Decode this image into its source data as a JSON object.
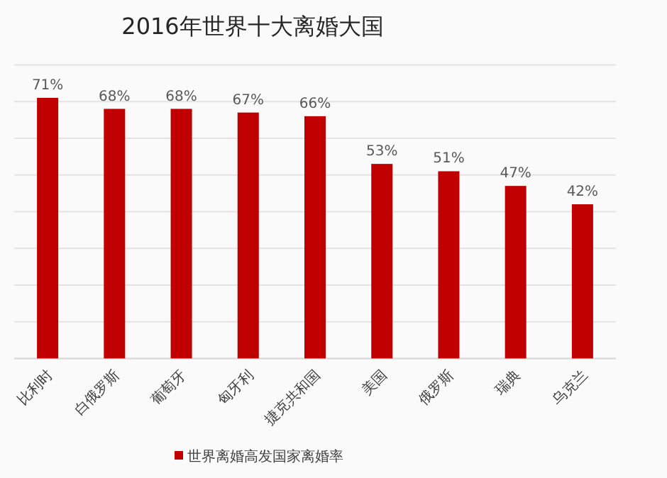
{
  "chart_data": {
    "type": "bar",
    "title": "2016年世界十大离婚大国",
    "categories": [
      "比利时",
      "白俄罗斯",
      "葡萄牙",
      "匈牙利",
      "捷克共和国",
      "美国",
      "俄罗斯",
      "瑞典",
      "乌克兰"
    ],
    "series": [
      {
        "name": "世界离婚高发国家离婚率",
        "color": "#c00000",
        "values": [
          71,
          68,
          68,
          67,
          66,
          53,
          51,
          47,
          42
        ],
        "value_labels": [
          "71%",
          "68%",
          "68%",
          "67%",
          "66%",
          "53%",
          "51%",
          "47%",
          "42%"
        ]
      }
    ],
    "ylim": [
      0,
      80
    ],
    "yticks": [
      {
        "value": 0,
        "label": null
      },
      {
        "value": 10,
        "label": null
      },
      {
        "value": 20,
        "label": null
      },
      {
        "value": 30,
        "label": null
      },
      {
        "value": 40,
        "label": null
      },
      {
        "value": 50,
        "label": null
      },
      {
        "value": 60,
        "label": null
      },
      {
        "value": 70,
        "label": null
      },
      {
        "value": 80,
        "label": null
      }
    ],
    "tick_labels": "x",
    "grid": "y",
    "legend": "bottom"
  }
}
